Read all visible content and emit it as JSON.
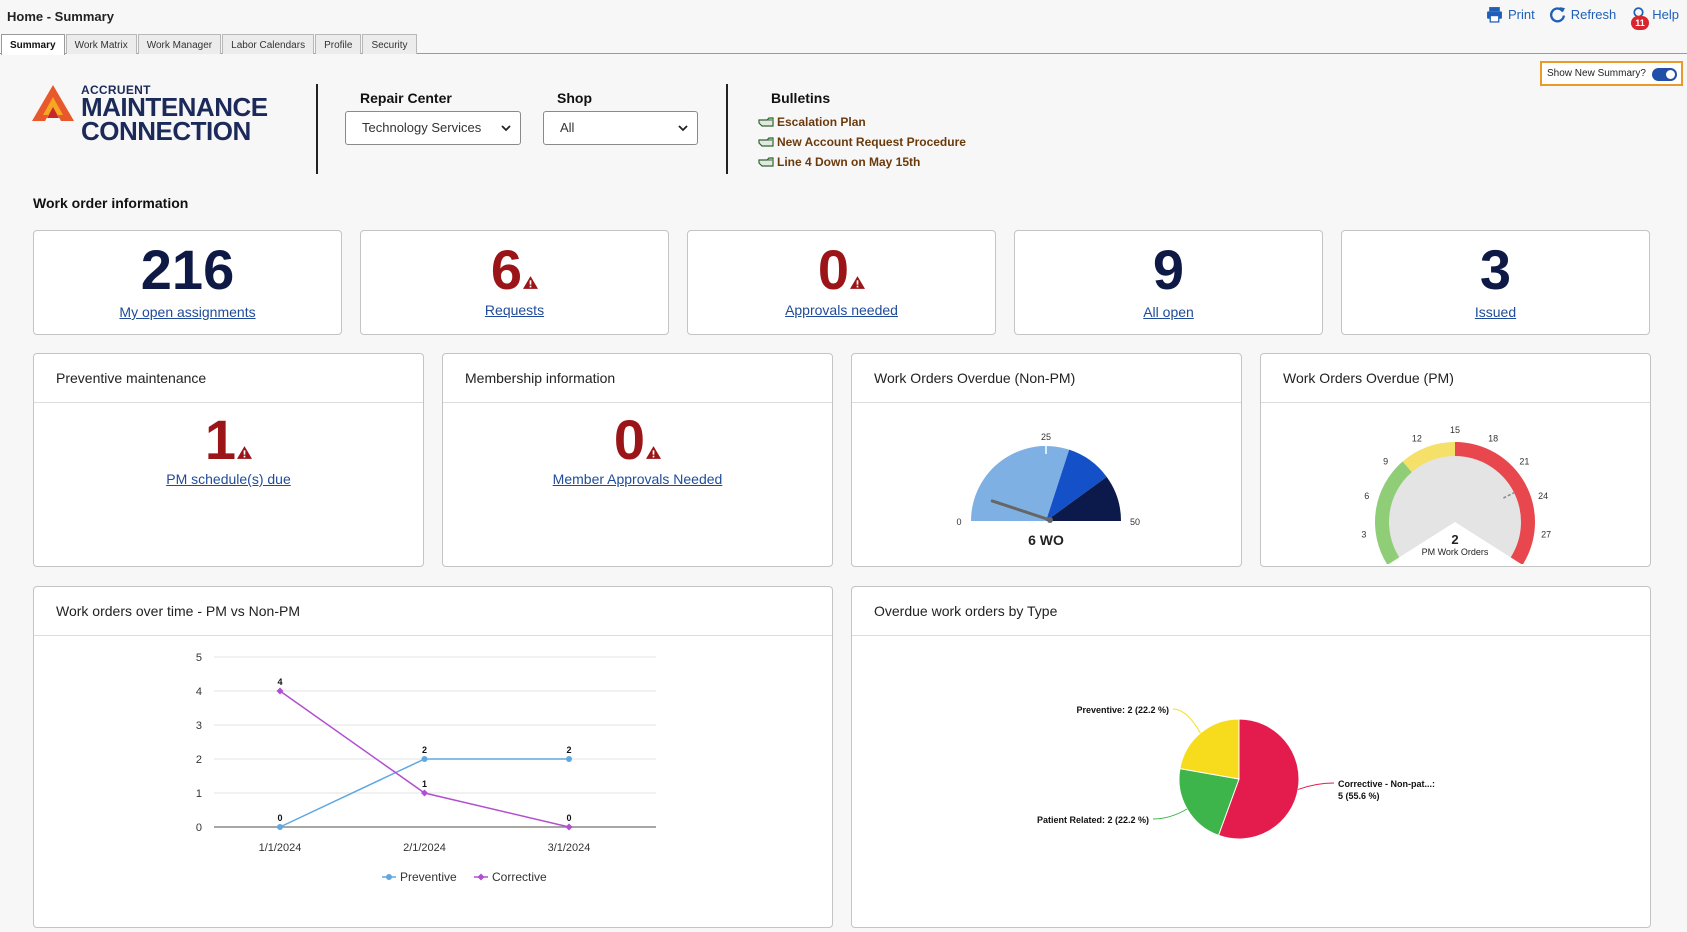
{
  "header": {
    "title": "Home - Summary",
    "actions": {
      "print": "Print",
      "refresh": "Refresh",
      "help": "Help",
      "help_badge": "11"
    }
  },
  "tabs": [
    {
      "label": "Summary",
      "active": true
    },
    {
      "label": "Work Matrix"
    },
    {
      "label": "Work Manager"
    },
    {
      "label": "Labor Calendars"
    },
    {
      "label": "Profile"
    },
    {
      "label": "Security"
    }
  ],
  "logo": {
    "line1": "ACCRUENT",
    "line2": "MAINTENANCE",
    "line3": "CONNECTION"
  },
  "filters": {
    "repair_center": {
      "label": "Repair Center",
      "value": "Technology Services"
    },
    "shop": {
      "label": "Shop",
      "value": "All"
    }
  },
  "bulletins": {
    "title": "Bulletins",
    "items": [
      "Escalation Plan",
      "New Account Request Procedure",
      "Line 4 Down on May 15th"
    ]
  },
  "toggle": {
    "label": "Show New Summary?",
    "on": true
  },
  "work_order_info": {
    "title": "Work order information",
    "kpis": [
      {
        "value": "216",
        "label": "My open assignments",
        "alert": false
      },
      {
        "value": "6",
        "label": "Requests",
        "alert": true
      },
      {
        "value": "0",
        "label": "Approvals needed",
        "alert": true
      },
      {
        "value": "9",
        "label": "All open",
        "alert": false
      },
      {
        "value": "3",
        "label": "Issued",
        "alert": false
      }
    ]
  },
  "cards": {
    "pm": {
      "title": "Preventive maintenance",
      "value": "1",
      "link": "PM schedule(s) due"
    },
    "membership": {
      "title": "Membership information",
      "value": "0",
      "link": "Member Approvals Needed"
    },
    "overdue_non_pm": {
      "title": "Work Orders Overdue (Non-PM)",
      "gauge": {
        "min": 0,
        "max": 50,
        "mid_label": "25",
        "value": 6,
        "readout": "6 WO",
        "colors": [
          "#7fb0e3",
          "#1450c8",
          "#0b1a4a"
        ]
      }
    },
    "overdue_pm": {
      "title": "Work Orders Overdue (PM)",
      "gauge": {
        "min": 0,
        "max": 30,
        "ticks": [
          "0",
          "3",
          "6",
          "9",
          "12",
          "15",
          "18",
          "21",
          "24",
          "27",
          "30"
        ],
        "value": 2,
        "readout": "2",
        "sublabel": "PM Work Orders",
        "colors": [
          "#8fce77",
          "#f5e06a",
          "#e8474d"
        ]
      }
    },
    "over_time": {
      "title": "Work orders over time - PM vs Non-PM"
    },
    "by_type": {
      "title": "Overdue work orders by Type"
    }
  },
  "chart_data": [
    {
      "type": "line",
      "categories": [
        "1/1/2024",
        "2/1/2024",
        "3/1/2024"
      ],
      "ylim": [
        0,
        5
      ],
      "yticks": [
        "0",
        "1",
        "2",
        "3",
        "4",
        "5"
      ],
      "series": [
        {
          "name": "Preventive",
          "values": [
            0,
            2,
            2
          ],
          "labels": [
            "0",
            "2",
            "2"
          ],
          "color": "#5fa8e0"
        },
        {
          "name": "Corrective",
          "values": [
            4,
            1,
            0
          ],
          "labels": [
            "4",
            "1",
            "0"
          ],
          "color": "#b24fd0"
        }
      ],
      "legend": "bottom"
    },
    {
      "type": "pie",
      "slices": [
        {
          "name": "Corrective - Non-pat...:",
          "value": 5,
          "label_line1": "Corrective - Non-pat...:",
          "label_line2": "5 (55.6 %)",
          "color": "#e31c4d"
        },
        {
          "name": "Patient Related",
          "value": 2,
          "label_line1": "Patient Related: 2 (22.2 %)",
          "color": "#3db54a"
        },
        {
          "name": "Preventive",
          "value": 2,
          "label_line1": "Preventive: 2 (22.2 %)",
          "color": "#f7dc1e"
        }
      ]
    }
  ]
}
